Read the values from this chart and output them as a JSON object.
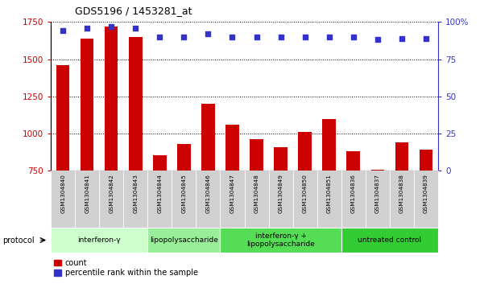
{
  "title": "GDS5196 / 1453281_at",
  "samples": [
    "GSM1304840",
    "GSM1304841",
    "GSM1304842",
    "GSM1304843",
    "GSM1304844",
    "GSM1304845",
    "GSM1304846",
    "GSM1304847",
    "GSM1304848",
    "GSM1304849",
    "GSM1304850",
    "GSM1304851",
    "GSM1304836",
    "GSM1304837",
    "GSM1304838",
    "GSM1304839"
  ],
  "counts": [
    1460,
    1640,
    1720,
    1650,
    855,
    930,
    1200,
    1060,
    960,
    910,
    1010,
    1100,
    880,
    760,
    940,
    890
  ],
  "percentiles": [
    94,
    96,
    97,
    96,
    90,
    90,
    92,
    90,
    90,
    90,
    90,
    90,
    90,
    88,
    89,
    89
  ],
  "bar_color": "#cc0000",
  "dot_color": "#3333cc",
  "ymin": 750,
  "ymax": 1750,
  "y_ticks": [
    750,
    1000,
    1250,
    1500,
    1750
  ],
  "y_right_ticks": [
    0,
    25,
    50,
    75,
    100
  ],
  "y_right_labels": [
    "0",
    "25",
    "50",
    "75",
    "100%"
  ],
  "groups": [
    {
      "label": "interferon-γ",
      "start": 0,
      "end": 4,
      "color": "#ccffcc"
    },
    {
      "label": "lipopolysaccharide",
      "start": 4,
      "end": 7,
      "color": "#99ee99"
    },
    {
      "label": "interferon-γ +\nlipopolysaccharide",
      "start": 7,
      "end": 12,
      "color": "#55dd55"
    },
    {
      "label": "untreated control",
      "start": 12,
      "end": 16,
      "color": "#33cc33"
    }
  ],
  "legend_count_label": "count",
  "legend_percentile_label": "percentile rank within the sample",
  "protocol_label": "protocol",
  "bar_width": 0.55,
  "figsize": [
    6.01,
    3.63
  ],
  "dpi": 100
}
